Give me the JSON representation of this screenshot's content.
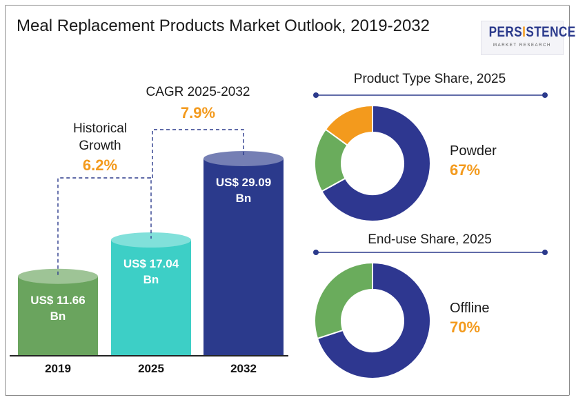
{
  "title": "Meal Replacement Products Market Outlook, 2019-2032",
  "logo": {
    "word_pre": "PERS",
    "word_i": "I",
    "word_post": "STENCE",
    "sub": "MARKET RESEARCH"
  },
  "colors": {
    "bar_2019": "#6aa45e",
    "bar_2025": "#3dcfc6",
    "bar_2032": "#2b3a8c",
    "growth_value": "#f39a1d",
    "donut_main": "#2e3790",
    "donut_green": "#6aac5c",
    "donut_orange": "#f39a1d",
    "divider": "#2b3a8c"
  },
  "chart_data": [
    {
      "type": "bar",
      "categories": [
        "2019",
        "2025",
        "2032"
      ],
      "values": [
        11.66,
        17.04,
        29.09
      ],
      "value_labels": [
        "US$ 11.66 Bn",
        "US$ 17.04 Bn",
        "US$ 29.09 Bn"
      ],
      "annotations": [
        {
          "label": "Historical Growth",
          "value": "6.2%"
        },
        {
          "label": "CAGR 2025-2032",
          "value": "7.9%"
        }
      ]
    },
    {
      "type": "pie",
      "title": "Product Type Share, 2025",
      "slices": [
        {
          "label": "Powder",
          "value": 67,
          "display": "67%",
          "color": "#2e3790"
        },
        {
          "label": "",
          "value": 18,
          "color": "#6aac5c"
        },
        {
          "label": "",
          "value": 15,
          "color": "#f39a1d"
        }
      ]
    },
    {
      "type": "pie",
      "title": "End-use Share, 2025",
      "slices": [
        {
          "label": "Offline",
          "value": 70,
          "display": "70%",
          "color": "#2e3790"
        },
        {
          "label": "",
          "value": 30,
          "color": "#6aac5c"
        }
      ]
    }
  ]
}
